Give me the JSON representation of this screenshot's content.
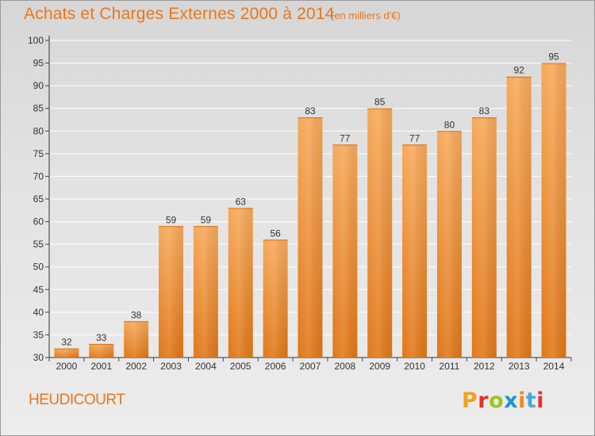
{
  "header": {
    "title": "Achats et Charges Externes 2000 à 2014",
    "subtitle": "(en milliers d'€)"
  },
  "footer": {
    "town": "HEUDICOURT",
    "logo_letters": [
      "P",
      "r",
      "o",
      "x",
      "i",
      "t",
      "i"
    ],
    "logo_colors": [
      "#f0a21c",
      "#e5312b",
      "#9fc21b",
      "#1e94d3",
      "#f08a1c",
      "#4aa6dd",
      "#e5312b"
    ]
  },
  "chart_data": {
    "type": "bar",
    "title": "Achats et Charges Externes 2000 à 2014",
    "subtitle": "(en milliers d'€)",
    "categories": [
      "2000",
      "2001",
      "2002",
      "2003",
      "2004",
      "2005",
      "2006",
      "2007",
      "2008",
      "2009",
      "2010",
      "2011",
      "2012",
      "2013",
      "2014"
    ],
    "values": [
      32,
      33,
      38,
      59,
      59,
      63,
      56,
      83,
      77,
      85,
      77,
      80,
      83,
      92,
      95
    ],
    "ylim": [
      30,
      100
    ],
    "yticks": [
      "30",
      "35",
      "40",
      "45",
      "50",
      "55",
      "60",
      "65",
      "70",
      "75",
      "80",
      "85",
      "90",
      "95",
      "100"
    ],
    "grid": true,
    "bar_color": "#f0932f"
  }
}
